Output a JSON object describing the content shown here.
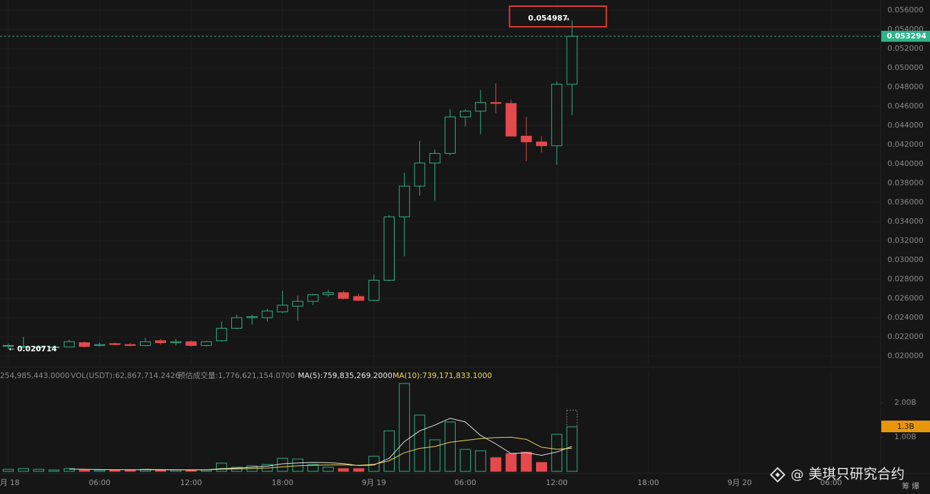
{
  "chart_data": {
    "type": "candlestick",
    "x": [
      0,
      1,
      2,
      3,
      4,
      5,
      6,
      7,
      8,
      9,
      10,
      11,
      12,
      13,
      14,
      15,
      16,
      17,
      18,
      19,
      20,
      21,
      22,
      23,
      24,
      25,
      26,
      27,
      28,
      29,
      30,
      31,
      32,
      33,
      34,
      35,
      36,
      37
    ],
    "open": [
      0.02105,
      0.02095,
      0.0209,
      0.0209,
      0.02095,
      0.0214,
      0.0211,
      0.0213,
      0.0212,
      0.0211,
      0.0216,
      0.0214,
      0.0215,
      0.0211,
      0.0216,
      0.0229,
      0.024,
      0.024,
      0.0246,
      0.0252,
      0.0257,
      0.0264,
      0.0266,
      0.0262,
      0.0258,
      0.0279,
      0.0345,
      0.0377,
      0.0401,
      0.0411,
      0.0449,
      0.0455,
      0.0464,
      0.0463,
      0.0429,
      0.0423,
      0.0419,
      0.0483
    ],
    "high": [
      0.0213,
      0.022,
      0.0211,
      0.0211,
      0.0217,
      0.0215,
      0.0214,
      0.0214,
      0.0214,
      0.0219,
      0.0218,
      0.0218,
      0.0216,
      0.0216,
      0.0236,
      0.0243,
      0.0243,
      0.0249,
      0.0268,
      0.0263,
      0.0265,
      0.0269,
      0.0268,
      0.0265,
      0.0285,
      0.0347,
      0.0391,
      0.0424,
      0.0415,
      0.0457,
      0.0457,
      0.0477,
      0.0484,
      0.0467,
      0.0449,
      0.0429,
      0.0486,
      0.054987
    ],
    "low": [
      0.020714,
      0.0208,
      0.0208,
      0.0208,
      0.0209,
      0.0209,
      0.021,
      0.0211,
      0.021,
      0.021,
      0.0212,
      0.0211,
      0.021,
      0.021,
      0.0215,
      0.0228,
      0.0233,
      0.0236,
      0.0245,
      0.0237,
      0.0253,
      0.0262,
      0.0259,
      0.0257,
      0.0257,
      0.0278,
      0.0304,
      0.0367,
      0.0362,
      0.0409,
      0.0439,
      0.0431,
      0.0453,
      0.0429,
      0.0403,
      0.0412,
      0.0399,
      0.0451
    ],
    "close": [
      0.0211,
      0.021,
      0.02095,
      0.02095,
      0.0215,
      0.021,
      0.0212,
      0.0212,
      0.0211,
      0.0215,
      0.0214,
      0.0215,
      0.0211,
      0.0215,
      0.0229,
      0.024,
      0.0241,
      0.0247,
      0.0253,
      0.0257,
      0.0264,
      0.0266,
      0.026,
      0.0258,
      0.0279,
      0.0345,
      0.0377,
      0.0401,
      0.0411,
      0.0449,
      0.0455,
      0.0464,
      0.0463,
      0.0429,
      0.0423,
      0.0419,
      0.0483,
      0.053294
    ],
    "up_color": "#2fb48a",
    "down_color": "#e5484d",
    "xlim": [
      -0.54,
      57.25
    ],
    "xticks": [
      {
        "value": 0,
        "label": "月 18"
      },
      {
        "value": 6,
        "label": "06:00"
      },
      {
        "value": 12,
        "label": "12:00"
      },
      {
        "value": 18,
        "label": "18:00"
      },
      {
        "value": 24,
        "label": "9月 19"
      },
      {
        "value": 30,
        "label": "06:00"
      },
      {
        "value": 36,
        "label": "12:00"
      },
      {
        "value": 42,
        "label": "18:00"
      },
      {
        "value": 48,
        "label": "9月 20"
      },
      {
        "value": 54,
        "label": "06:00"
      }
    ],
    "ylim": [
      0.019214,
      0.057071
    ],
    "yticks": [
      {
        "value": 0.02,
        "label": "0.020000"
      },
      {
        "value": 0.022,
        "label": "0.022000"
      },
      {
        "value": 0.024,
        "label": "0.024000"
      },
      {
        "value": 0.026,
        "label": "0.026000"
      },
      {
        "value": 0.028,
        "label": "0.028000"
      },
      {
        "value": 0.03,
        "label": "0.030000"
      },
      {
        "value": 0.032,
        "label": "0.032000"
      },
      {
        "value": 0.034,
        "label": "0.034000"
      },
      {
        "value": 0.036,
        "label": "0.036000"
      },
      {
        "value": 0.038,
        "label": "0.038000"
      },
      {
        "value": 0.04,
        "label": "0.040000"
      },
      {
        "value": 0.042,
        "label": "0.042000"
      },
      {
        "value": 0.044,
        "label": "0.044000"
      },
      {
        "value": 0.046,
        "label": "0.046000"
      },
      {
        "value": 0.048,
        "label": "0.048000"
      },
      {
        "value": 0.05,
        "label": "0.050000"
      },
      {
        "value": 0.052,
        "label": "0.052000"
      },
      {
        "value": 0.054,
        "label": "0.054000"
      },
      {
        "value": 0.056,
        "label": "0.056000"
      }
    ],
    "grid": true,
    "volume": {
      "header": [
        "254,985,443.0000",
        "VOL(USDT):62,867,714.2426",
        "预估成交量:1,776,621,154.0700"
      ],
      "values": [
        0.06,
        0.08,
        0.06,
        0.04,
        0.08,
        0.04,
        0.04,
        0.04,
        0.04,
        0.06,
        0.04,
        0.04,
        0.04,
        0.04,
        0.24,
        0.12,
        0.16,
        0.2,
        0.38,
        0.36,
        0.2,
        0.12,
        0.08,
        0.08,
        0.44,
        1.18,
        2.56,
        1.64,
        0.92,
        1.44,
        0.64,
        0.6,
        0.4,
        0.52,
        0.56,
        0.26,
        1.08,
        1.3
      ],
      "value_labels": [
        null,
        null,
        null,
        null,
        null,
        null,
        null,
        null,
        null,
        null,
        null,
        null,
        null,
        null,
        null,
        null,
        null,
        null,
        null,
        null,
        null,
        null,
        null,
        null,
        null,
        null,
        null,
        null,
        null,
        null,
        null,
        null,
        null,
        null,
        null,
        null,
        null,
        "1.3B"
      ],
      "estimated": 1.78,
      "series": [
        {
          "name": "MA(5):759,835,269.2000",
          "color": "#e8e8e8",
          "values": [
            null,
            null,
            null,
            null,
            0.064,
            0.06,
            0.052,
            0.048,
            0.048,
            0.044,
            0.044,
            0.044,
            0.044,
            0.044,
            0.08,
            0.096,
            0.12,
            0.152,
            0.22,
            0.244,
            0.26,
            0.252,
            0.228,
            0.168,
            0.184,
            0.38,
            0.868,
            1.18,
            1.348,
            1.548,
            1.44,
            1.048,
            0.8,
            0.52,
            0.544,
            0.468,
            0.564,
            0.728
          ]
        },
        {
          "name": "MA(10):739,171,833.1000",
          "color": "#f0d85a",
          "values": [
            null,
            null,
            null,
            null,
            null,
            null,
            null,
            null,
            null,
            0.054,
            0.052,
            0.048,
            0.046,
            0.046,
            0.062,
            0.07,
            0.082,
            0.098,
            0.13,
            0.162,
            0.178,
            0.186,
            0.19,
            0.174,
            0.206,
            0.308,
            0.544,
            0.67,
            0.726,
            0.85,
            0.902,
            0.954,
            0.986,
            0.994,
            0.932,
            0.702,
            0.646,
            0.676
          ]
        }
      ],
      "ylim": [
        0,
        2.94
      ],
      "yticks": [
        {
          "value": 1,
          "label": "1.00B"
        },
        {
          "value": 2,
          "label": "2.00B"
        }
      ]
    }
  },
  "watermark": "美琪只研究合约",
  "corner_text": "筹 爆"
}
